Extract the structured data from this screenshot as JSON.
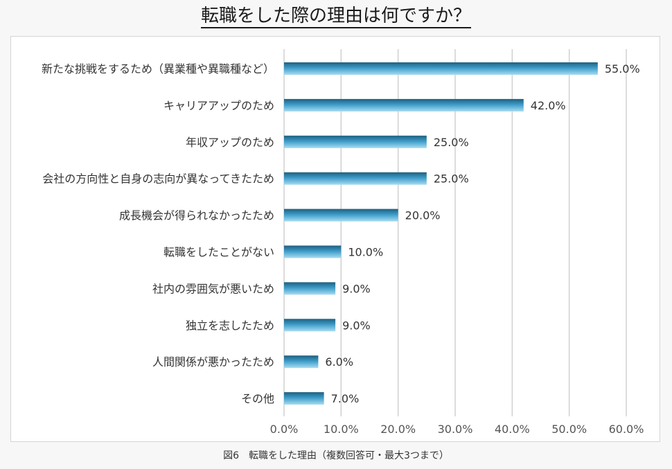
{
  "page": {
    "title": "転職をした際の理由は何ですか？",
    "caption": "図6　転職をした理由（複数回答可・最大3つまで）"
  },
  "chart_data": {
    "type": "bar",
    "orientation": "horizontal",
    "title": "転職をした際の理由は何ですか？",
    "categories": [
      "新たな挑戦をするため（異業種や異職種など）",
      "キャリアアップのため",
      "年収アップのため",
      "会社の方向性と自身の志向が異なってきたため",
      "成長機会が得られなかったため",
      "転職をしたことがない",
      "社内の雰囲気が悪いため",
      "独立を志したため",
      "人間関係が悪かったため",
      "その他"
    ],
    "values": [
      55.0,
      42.0,
      25.0,
      25.0,
      20.0,
      10.0,
      9.0,
      9.0,
      6.0,
      7.0
    ],
    "value_labels": [
      "55.0%",
      "42.0%",
      "25.0%",
      "25.0%",
      "20.0%",
      "10.0%",
      "9.0%",
      "9.0%",
      "6.0%",
      "7.0%"
    ],
    "xlim": [
      0,
      60
    ],
    "x_ticks": [
      0,
      10,
      20,
      30,
      40,
      50,
      60
    ],
    "x_tick_labels": [
      "0.0%",
      "10.0%",
      "20.0%",
      "30.0%",
      "40.0%",
      "50.0%",
      "60.0%"
    ],
    "xlabel": "",
    "ylabel": "",
    "grid": true,
    "legend": "none",
    "colors": {
      "bar_top": "#1e5f7f",
      "bar_mid": "#3d9cc8",
      "bar_bottom": "#a9dcf2",
      "grid": "#d0d0d0"
    }
  }
}
